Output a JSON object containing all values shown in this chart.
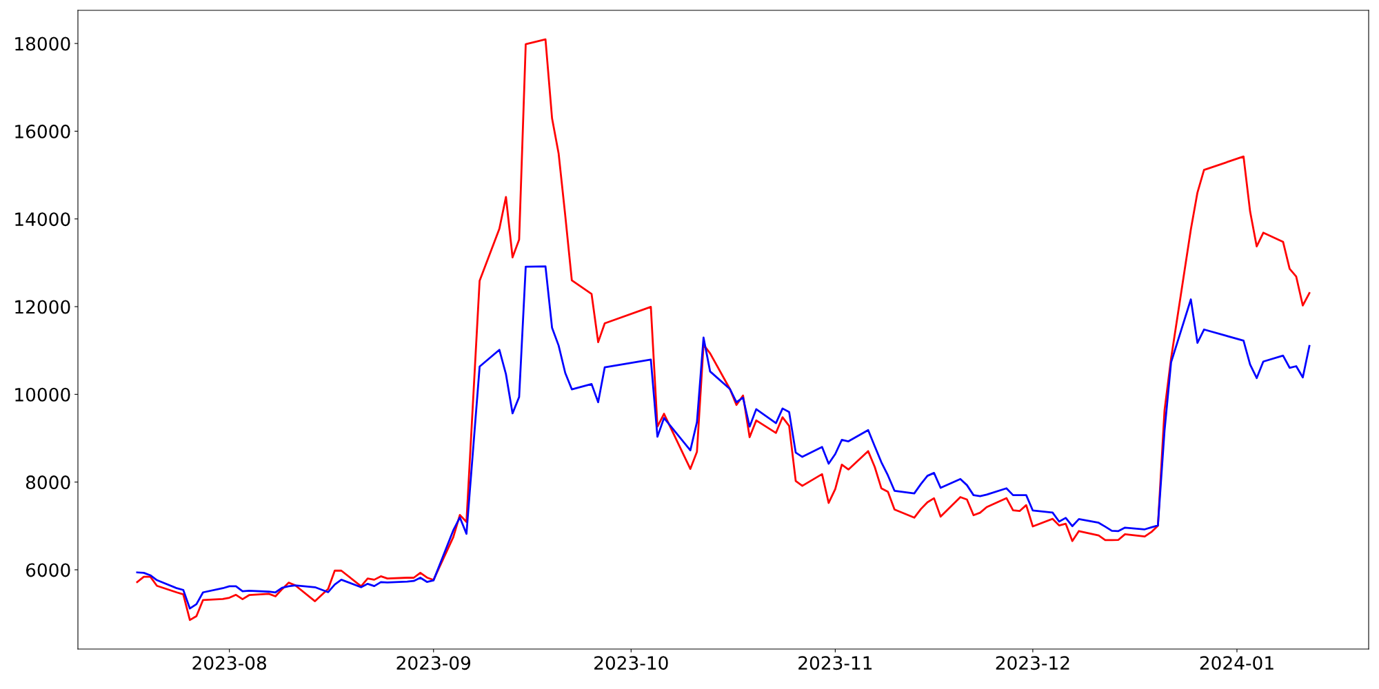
{
  "chart_data": {
    "type": "line",
    "x": [
      "2023-07-18",
      "2023-07-19",
      "2023-07-20",
      "2023-07-21",
      "2023-07-24",
      "2023-07-25",
      "2023-07-26",
      "2023-07-27",
      "2023-07-28",
      "2023-07-31",
      "2023-08-01",
      "2023-08-02",
      "2023-08-03",
      "2023-08-04",
      "2023-08-07",
      "2023-08-08",
      "2023-08-09",
      "2023-08-10",
      "2023-08-11",
      "2023-08-14",
      "2023-08-16",
      "2023-08-17",
      "2023-08-18",
      "2023-08-21",
      "2023-08-22",
      "2023-08-23",
      "2023-08-24",
      "2023-08-25",
      "2023-08-28",
      "2023-08-29",
      "2023-08-30",
      "2023-08-31",
      "2023-09-01",
      "2023-09-04",
      "2023-09-05",
      "2023-09-06",
      "2023-09-08",
      "2023-09-11",
      "2023-09-12",
      "2023-09-13",
      "2023-09-14",
      "2023-09-15",
      "2023-09-18",
      "2023-09-19",
      "2023-09-20",
      "2023-09-21",
      "2023-09-22",
      "2023-09-25",
      "2023-09-26",
      "2023-09-27",
      "2023-10-04",
      "2023-10-05",
      "2023-10-06",
      "2023-10-10",
      "2023-10-11",
      "2023-10-12",
      "2023-10-13",
      "2023-10-16",
      "2023-10-17",
      "2023-10-18",
      "2023-10-19",
      "2023-10-20",
      "2023-10-23",
      "2023-10-24",
      "2023-10-25",
      "2023-10-26",
      "2023-10-27",
      "2023-10-30",
      "2023-10-31",
      "2023-11-01",
      "2023-11-02",
      "2023-11-03",
      "2023-11-06",
      "2023-11-07",
      "2023-11-08",
      "2023-11-09",
      "2023-11-10",
      "2023-11-13",
      "2023-11-14",
      "2023-11-15",
      "2023-11-16",
      "2023-11-17",
      "2023-11-20",
      "2023-11-21",
      "2023-11-22",
      "2023-11-23",
      "2023-11-24",
      "2023-11-27",
      "2023-11-28",
      "2023-11-29",
      "2023-11-30",
      "2023-12-01",
      "2023-12-04",
      "2023-12-05",
      "2023-12-06",
      "2023-12-07",
      "2023-12-08",
      "2023-12-11",
      "2023-12-12",
      "2023-12-13",
      "2023-12-14",
      "2023-12-15",
      "2023-12-18",
      "2023-12-19",
      "2023-12-20",
      "2023-12-21",
      "2023-12-22",
      "2023-12-25",
      "2023-12-26",
      "2023-12-27",
      "2024-01-02",
      "2024-01-03",
      "2024-01-04",
      "2024-01-05",
      "2024-01-08",
      "2024-01-09",
      "2024-01-10",
      "2024-01-11",
      "2024-01-12"
    ],
    "series": [
      {
        "color": "#ff0000",
        "values": [
          5719,
          5841,
          5841,
          5635,
          5485,
          5440,
          4855,
          4944,
          5312,
          5334,
          5362,
          5429,
          5329,
          5423,
          5451,
          5395,
          5557,
          5707,
          5646,
          5284,
          5563,
          5980,
          5980,
          5624,
          5802,
          5774,
          5852,
          5802,
          5819,
          5819,
          5931,
          5824,
          5769,
          6744,
          7251,
          7091,
          12591,
          13777,
          14502,
          13124,
          13530,
          17983,
          18094,
          16293,
          15488,
          14080,
          12599,
          12288,
          11190,
          11620,
          11994,
          9264,
          9557,
          8300,
          8690,
          11133,
          10935,
          10124,
          9757,
          9973,
          9024,
          9406,
          9121,
          9478,
          9280,
          8025,
          7915,
          8181,
          7524,
          7841,
          8398,
          8287,
          8706,
          8344,
          7858,
          7780,
          7373,
          7189,
          7384,
          7540,
          7631,
          7212,
          7657,
          7602,
          7245,
          7301,
          7429,
          7635,
          7357,
          7340,
          7474,
          6989,
          7162,
          7011,
          7050,
          6655,
          6883,
          6783,
          6677,
          6677,
          6682,
          6811,
          6760,
          6861,
          7006,
          9630,
          10820,
          13759,
          14599,
          15117,
          15423,
          14167,
          13373,
          13685,
          13479,
          12862,
          12685,
          12025,
          12308
        ]
      },
      {
        "color": "#0000ff",
        "values": [
          5940,
          5931,
          5875,
          5763,
          5580,
          5540,
          5117,
          5217,
          5485,
          5580,
          5624,
          5624,
          5512,
          5524,
          5501,
          5485,
          5590,
          5624,
          5646,
          5602,
          5490,
          5663,
          5774,
          5602,
          5680,
          5629,
          5719,
          5712,
          5729,
          5746,
          5819,
          5724,
          5758,
          6900,
          7195,
          6820,
          10633,
          11015,
          10458,
          9567,
          9941,
          12909,
          12917,
          11517,
          11111,
          10489,
          10115,
          10235,
          9821,
          10617,
          10792,
          9033,
          9462,
          8723,
          9367,
          11294,
          10522,
          10124,
          9821,
          9924,
          9264,
          9662,
          9344,
          9678,
          9598,
          8672,
          8575,
          8801,
          8418,
          8639,
          8962,
          8929,
          9185,
          8817,
          8454,
          8153,
          7802,
          7741,
          7953,
          8142,
          8209,
          7869,
          8071,
          7930,
          7702,
          7680,
          7713,
          7858,
          7702,
          7702,
          7702,
          7351,
          7306,
          7100,
          7184,
          6994,
          7156,
          7072,
          6983,
          6889,
          6883,
          6961,
          6922,
          6967,
          7011,
          9167,
          10730,
          12166,
          11175,
          11478,
          11224,
          10678,
          10372,
          10748,
          10884,
          10606,
          10642,
          10386,
          11104
        ]
      }
    ],
    "xlim": [
      "2023-07-09",
      "2024-01-21"
    ],
    "xticks": [
      {
        "value": "2023-08-01",
        "label": "2023-08"
      },
      {
        "value": "2023-09-01",
        "label": "2023-09"
      },
      {
        "value": "2023-10-01",
        "label": "2023-10"
      },
      {
        "value": "2023-11-01",
        "label": "2023-11"
      },
      {
        "value": "2023-12-01",
        "label": "2023-12"
      },
      {
        "value": "2024-01-01",
        "label": "2024-01"
      }
    ],
    "ylim": [
      4193,
      18756
    ],
    "yticks": [
      6000,
      8000,
      10000,
      12000,
      14000,
      16000,
      18000
    ],
    "grid": false,
    "marker": "none",
    "line_style": "solid"
  }
}
